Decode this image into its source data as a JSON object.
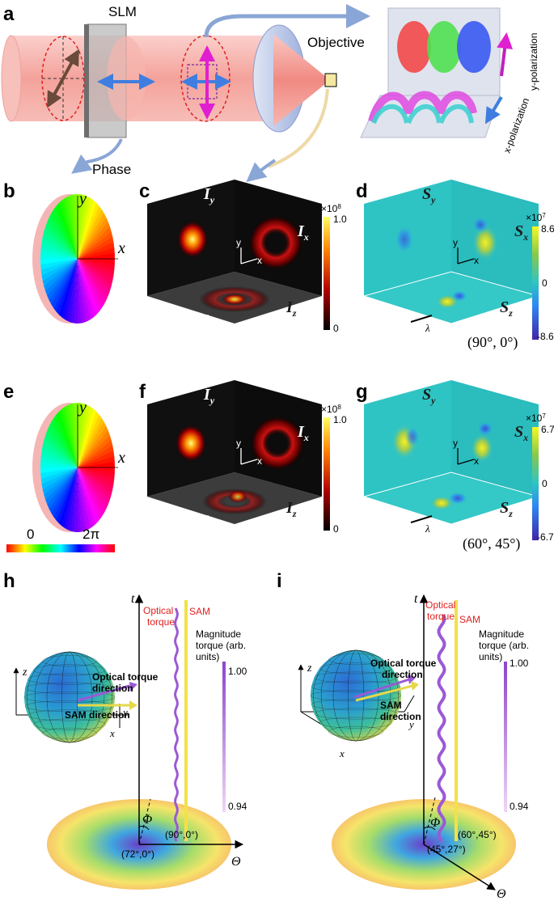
{
  "panels": {
    "a": "a",
    "b": "b",
    "c": "c",
    "d": "d",
    "e": "e",
    "f": "f",
    "g": "g",
    "h": "h",
    "i": "i"
  },
  "panel_a": {
    "slm_label": "SLM",
    "objective_label": "Objective",
    "phase_label": "Phase",
    "y_polarization_label": "y-polarization",
    "x_polarization_label": "x-polarization"
  },
  "phase_disk": {
    "y_label": "y",
    "x_label": "x"
  },
  "phase_colorbar": {
    "min_label": "0",
    "max_label": "2π"
  },
  "intensity_cube": {
    "face_top_left": "I",
    "face_top_left_sub": "y",
    "face_right": "I",
    "face_right_sub": "x",
    "face_bottom": "I",
    "face_bottom_sub": "z",
    "axis_y": "y",
    "axis_x": "x",
    "scale_label": "λ",
    "colorbar_exp": "×10",
    "colorbar_exp_pow": "8",
    "colorbar_max": "1.0",
    "colorbar_min": "0"
  },
  "spin_cube": {
    "face_top_left": "S",
    "face_top_left_sub": "y",
    "face_right": "S",
    "face_right_sub": "x",
    "face_bottom": "S",
    "face_bottom_sub": "z",
    "axis_y": "y",
    "axis_x": "x",
    "scale_label": "λ"
  },
  "row1": {
    "angles": "(90°, 0°)",
    "colorbar_exp": "×10",
    "colorbar_exp_pow": "7",
    "colorbar_max": "8.6",
    "colorbar_mid": "0",
    "colorbar_min": "-8.6"
  },
  "row2": {
    "angles": "(60°, 45°)",
    "colorbar_exp": "×10",
    "colorbar_exp_pow": "7",
    "colorbar_max": "6.7",
    "colorbar_mid": "0",
    "colorbar_min": "-6.7"
  },
  "panel_h": {
    "t_axis": "t",
    "theta_axis": "Θ",
    "phi_label": "Φ",
    "optical_torque_1": "Optical",
    "optical_torque_2": "torque",
    "sam": "SAM",
    "magnitude_1": "Magnitude",
    "magnitude_2": "torque (arb.",
    "magnitude_3": "units)",
    "mag_max": "1.00",
    "mag_min": "0.94",
    "sphere_torque_1": "Optical torque",
    "sphere_torque_2": "direction",
    "sphere_sam": "SAM direction",
    "axis_z": "z",
    "axis_y": "y",
    "axis_x": "x",
    "coord_sam": "(90°,0°)",
    "coord_torque": "(72°,0°)"
  },
  "panel_i": {
    "t_axis": "t",
    "theta_axis": "Θ",
    "phi_label": "Φ",
    "optical_torque_1": "Optical",
    "optical_torque_2": "torque",
    "sam": "SAM",
    "magnitude_1": "Magnitude",
    "magnitude_2": "torque (arb.",
    "magnitude_3": "units)",
    "mag_max": "1.00",
    "mag_min": "0.94",
    "sphere_torque_1": "Optical torque",
    "sphere_torque_2": "direction",
    "sphere_sam_1": "SAM",
    "sphere_sam_2": "direction",
    "axis_z": "z",
    "axis_y": "y",
    "axis_x": "x",
    "coord_sam": "(60°,45°)",
    "coord_torque": "(45°,27°)"
  },
  "colors": {
    "beam": "#f6a9a3",
    "slm": "#9a9a9a",
    "arrow_blue": "#3f7ee0",
    "arrow_magenta": "#e020d0",
    "teal": "#2fc4c4",
    "cube_dark": "#101010",
    "torque": "#9b59d6",
    "sam": "#f2e14a"
  }
}
